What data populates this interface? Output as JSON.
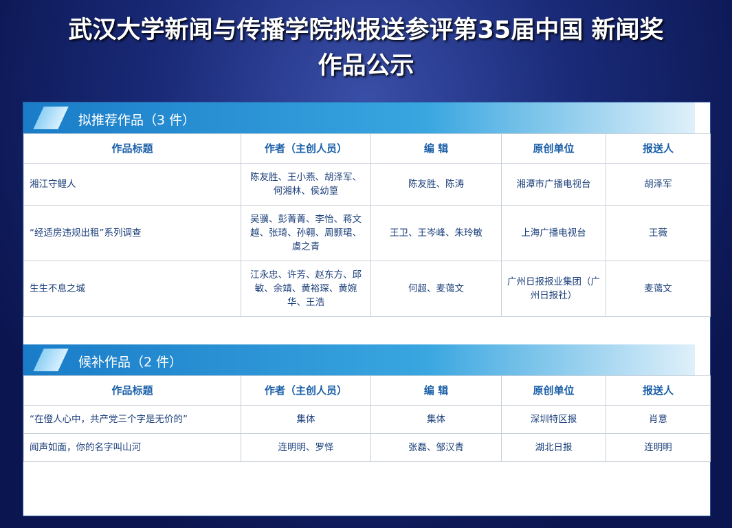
{
  "header": {
    "title_lines": [
      "武汉大学新闻与传播学院拟报送参评第35届中国 新闻奖",
      "作品公示"
    ]
  },
  "sections": [
    {
      "heading": "拟推荐作品（3 件）",
      "columns": [
        "作品标题",
        "作者（主创人员）",
        "编 辑",
        "原创单位",
        "报送人"
      ],
      "rows": [
        [
          "湘江守鲤人",
          "陈友胜、王小燕、胡泽军、何湘林、侯幼篁",
          "陈友胜、陈涛",
          "湘潭市广播电视台",
          "胡泽军"
        ],
        [
          "“经适房违规出租”系列调查",
          "吴骥、彭菁菁、李怡、蒋文越、张琦、孙翱、周颢珺、虞之青",
          "王卫、王岑峰、朱玲敏",
          "上海广播电视台",
          "王薇"
        ],
        [
          "生生不息之城",
          "江永忠、许芳、赵东方、邱敏、余靖、黄裕琛、黄婉华、王浩",
          "何超、麦蔼文",
          "广州日报报业集团（广州日报社）",
          "麦蔼文"
        ]
      ]
    },
    {
      "heading": "候补作品（2 件）",
      "columns": [
        "作品标题",
        "作者（主创人员）",
        "编 辑",
        "原创单位",
        "报送人"
      ],
      "rows": [
        [
          "“在僜人心中，共产党三个字是无价的”",
          "集体",
          "集体",
          "深圳特区报",
          "肖意"
        ],
        [
          "闻声如面，你的名字叫山河",
          "连明明、罗怿",
          "张磊、邹汉青",
          "湖北日报",
          "连明明"
        ]
      ]
    }
  ]
}
